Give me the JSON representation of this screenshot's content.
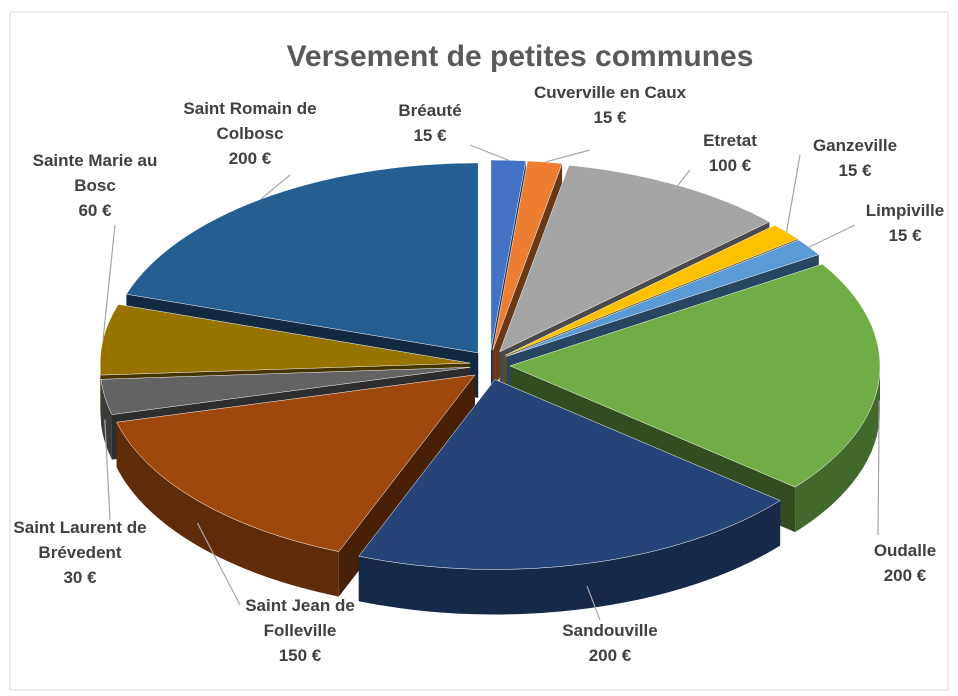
{
  "chart_data": {
    "type": "pie3d",
    "title": "Versement de petites communes",
    "categories": [
      "Bréauté",
      "Cuverville en Caux",
      "Etretat",
      "Ganzeville",
      "Limpiville",
      "Oudalle",
      "Sandouville",
      "Saint Jean de Folleville",
      "Saint Laurent de Brévedent",
      "Sainte Marie au Bosc",
      "Saint Romain de Colbosc"
    ],
    "values": [
      15,
      15,
      100,
      15,
      15,
      200,
      200,
      150,
      30,
      60,
      200
    ],
    "value_labels": [
      "15 €",
      "15 €",
      "100 €",
      "15 €",
      "15 €",
      "200 €",
      "200 €",
      "150 €",
      "30 €",
      "60 €",
      "200 €"
    ],
    "colors": [
      "#4472c4",
      "#ed7d31",
      "#a5a5a5",
      "#ffc000",
      "#5b9bd5",
      "#70ad47",
      "#264478",
      "#9e480e",
      "#636363",
      "#997300",
      "#255e91"
    ]
  }
}
